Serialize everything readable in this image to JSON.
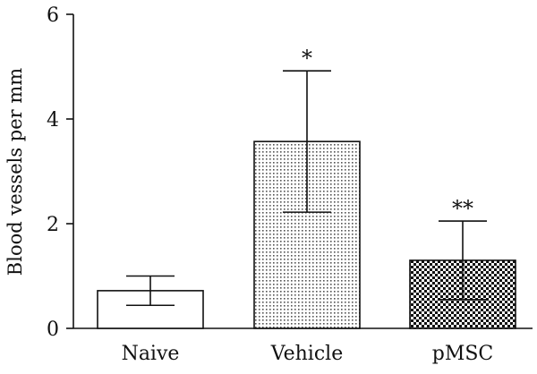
{
  "chart_data": {
    "type": "bar",
    "categories": [
      "Naive",
      "Vehicle",
      "pMSC"
    ],
    "values": [
      0.72,
      3.57,
      1.3
    ],
    "error": [
      0.28,
      1.35,
      0.75
    ],
    "significance": [
      "",
      "*",
      "**"
    ],
    "fills": [
      "plain",
      "dots",
      "checker"
    ],
    "title": "",
    "xlabel": "",
    "ylabel": "Blood vessels per mm",
    "ylim": [
      0,
      6
    ],
    "yticks": [
      0,
      2,
      4,
      6
    ],
    "grid": false,
    "legend": "none"
  }
}
